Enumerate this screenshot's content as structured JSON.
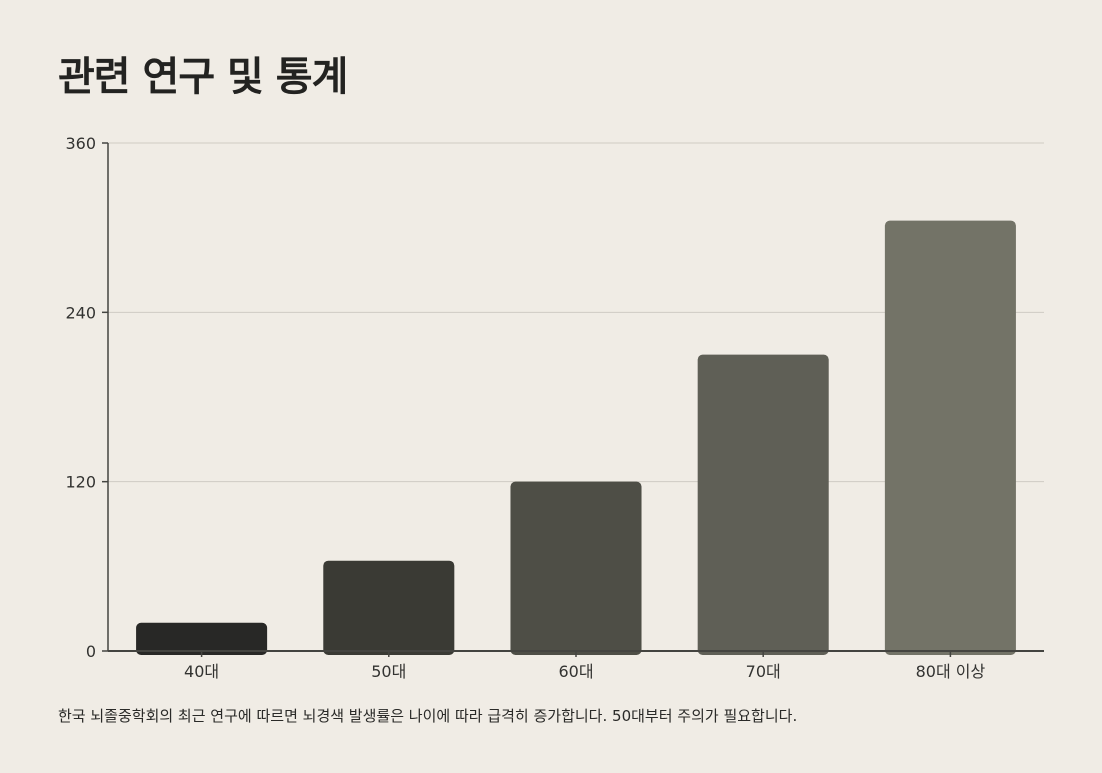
{
  "page": {
    "title": "관련 연구 및 통계",
    "caption": "한국 뇌졸중학회의 최근 연구에 따르면 뇌경색 발생률은 나이에 따라 급격히 증가합니다. 50대부터 주의가 필요합니다."
  },
  "chart_data": {
    "type": "bar",
    "title": "",
    "xlabel": "",
    "ylabel": "",
    "categories": [
      "40대",
      "50대",
      "60대",
      "70대",
      "80대 이상"
    ],
    "values": [
      20,
      64,
      120,
      210,
      305
    ],
    "ylim": [
      0,
      360
    ],
    "yticks": [
      0,
      120,
      240,
      360
    ],
    "grid": true,
    "legend": "none",
    "colors": [
      "#282826",
      "#3a3a34",
      "#4e4e46",
      "#5f5f56",
      "#737367"
    ]
  }
}
